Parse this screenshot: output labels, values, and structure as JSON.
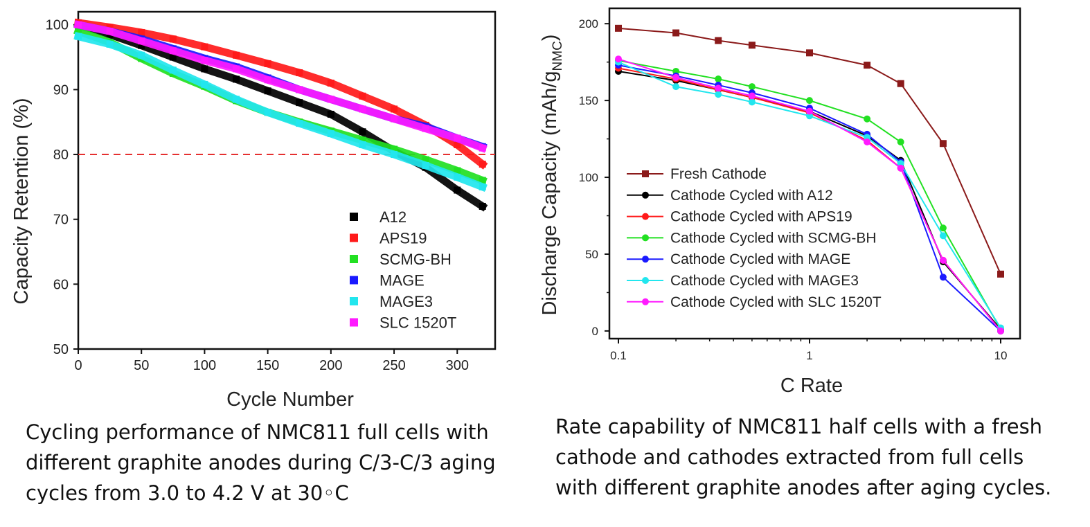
{
  "chart_data": [
    {
      "type": "scatter",
      "xlabel": "Cycle Number",
      "ylabel": "Capacity Retention (%)",
      "xlim": [
        0,
        330
      ],
      "ylim": [
        50,
        102
      ],
      "xticks": [
        "0",
        "50",
        "100",
        "150",
        "200",
        "250",
        "300"
      ],
      "yticks": [
        "50",
        "60",
        "70",
        "80",
        "90",
        "100"
      ],
      "reference_line": {
        "y": 80,
        "style": "dashed",
        "color": "#e53030"
      },
      "legend_position": "bottom-right",
      "series": [
        {
          "name": "A12",
          "color": "#000000",
          "x": [
            0,
            25,
            50,
            75,
            100,
            125,
            150,
            175,
            200,
            225,
            250,
            275,
            300,
            320
          ],
          "y": [
            100,
            98.5,
            96.8,
            95,
            93.2,
            91.6,
            89.8,
            88,
            86.2,
            83.5,
            80.5,
            78,
            74.5,
            72
          ]
        },
        {
          "name": "APS19",
          "color": "#ff1a1a",
          "x": [
            0,
            25,
            50,
            75,
            100,
            125,
            150,
            175,
            200,
            225,
            250,
            275,
            300,
            320
          ],
          "y": [
            100.3,
            99.6,
            98.8,
            97.8,
            96.6,
            95.3,
            94,
            92.6,
            91,
            89,
            87,
            84.5,
            81.5,
            78.5
          ]
        },
        {
          "name": "SCMG-BH",
          "color": "#22e022",
          "x": [
            0,
            25,
            50,
            75,
            100,
            125,
            150,
            175,
            200,
            225,
            250,
            275,
            300,
            320
          ],
          "y": [
            99,
            97.3,
            94.8,
            92.5,
            90.5,
            88.3,
            86.5,
            85,
            83.6,
            82.2,
            80.8,
            79.2,
            77.5,
            76
          ]
        },
        {
          "name": "MAGE",
          "color": "#1a1aff",
          "x": [
            0,
            25,
            50,
            75,
            100,
            125,
            150,
            175,
            200,
            225,
            250,
            275,
            300,
            320
          ],
          "y": [
            100,
            99,
            97.8,
            96.3,
            94.8,
            93.5,
            91.8,
            90,
            88.5,
            87,
            85.5,
            84.3,
            82.5,
            81.2
          ]
        },
        {
          "name": "MAGE3",
          "color": "#22e6ee",
          "x": [
            0,
            25,
            50,
            75,
            100,
            125,
            150,
            175,
            200,
            225,
            250,
            275,
            300,
            320
          ],
          "y": [
            98.2,
            97,
            95.3,
            93,
            90.8,
            88.5,
            86.5,
            84.8,
            83.2,
            81.5,
            80,
            78.3,
            76.5,
            75
          ]
        },
        {
          "name": "SLC 1520T",
          "color": "#ff1aff",
          "x": [
            0,
            25,
            50,
            75,
            100,
            125,
            150,
            175,
            200,
            225,
            250,
            275,
            300,
            320
          ],
          "y": [
            100,
            99,
            97.5,
            96,
            94.5,
            93.2,
            91.5,
            90,
            88.5,
            87,
            85.5,
            84,
            82.5,
            81
          ]
        }
      ]
    },
    {
      "type": "line",
      "xscale": "log",
      "xlabel": "C Rate",
      "ylabel": "Discharge Capacity (mAh/g",
      "ylabel_sub": "NMC",
      "ylabel_end": ")",
      "xlim": [
        0.1,
        10
      ],
      "ylim": [
        -5,
        210
      ],
      "xticks": [
        "0.1",
        "1",
        "10"
      ],
      "yticks": [
        "0",
        "50",
        "100",
        "150",
        "200"
      ],
      "legend_position": "center-left",
      "x": [
        0.1,
        0.2,
        0.333,
        0.5,
        1,
        2,
        3,
        5,
        10
      ],
      "series": [
        {
          "name": "Fresh Cathode",
          "color": "#8b1a1a",
          "marker": "square",
          "values": [
            197,
            194,
            189,
            186,
            181,
            173,
            161,
            122,
            37
          ]
        },
        {
          "name": "Cathode Cycled with A12",
          "color": "#000000",
          "marker": "circle",
          "values": [
            169,
            163,
            157,
            152,
            143,
            127,
            111,
            45,
            1
          ]
        },
        {
          "name": "Cathode Cycled with APS19",
          "color": "#ff1a1a",
          "marker": "circle",
          "values": [
            171,
            164,
            157,
            152,
            142,
            124,
            106,
            46,
            0
          ]
        },
        {
          "name": "Cathode Cycled with SCMG-BH",
          "color": "#22e022",
          "marker": "circle",
          "values": [
            176,
            169,
            164,
            159,
            150,
            138,
            123,
            67,
            1
          ]
        },
        {
          "name": "Cathode Cycled with MAGE",
          "color": "#1a1aff",
          "marker": "circle",
          "values": [
            173,
            166,
            160,
            155,
            145,
            128,
            110,
            35,
            0
          ]
        },
        {
          "name": "Cathode Cycled with MAGE3",
          "color": "#22e6ee",
          "marker": "circle",
          "values": [
            175,
            159,
            154,
            149,
            140,
            126,
            109,
            62,
            2
          ]
        },
        {
          "name": "Cathode Cycled with SLC 1520T",
          "color": "#ff1aff",
          "marker": "circle",
          "values": [
            177,
            165,
            158,
            153,
            143,
            123,
            106,
            46,
            0
          ]
        }
      ]
    }
  ],
  "captions": {
    "left": [
      "Cycling performance of NMC811 full cells with",
      "different graphite anodes during C/3-C/3 aging",
      "cycles from 3.0 to 4.2 V at 30◦C"
    ],
    "right": [
      "Rate capability of NMC811 half cells with a fresh",
      "cathode and cathodes extracted from full cells",
      "with different graphite anodes after aging cycles."
    ]
  }
}
